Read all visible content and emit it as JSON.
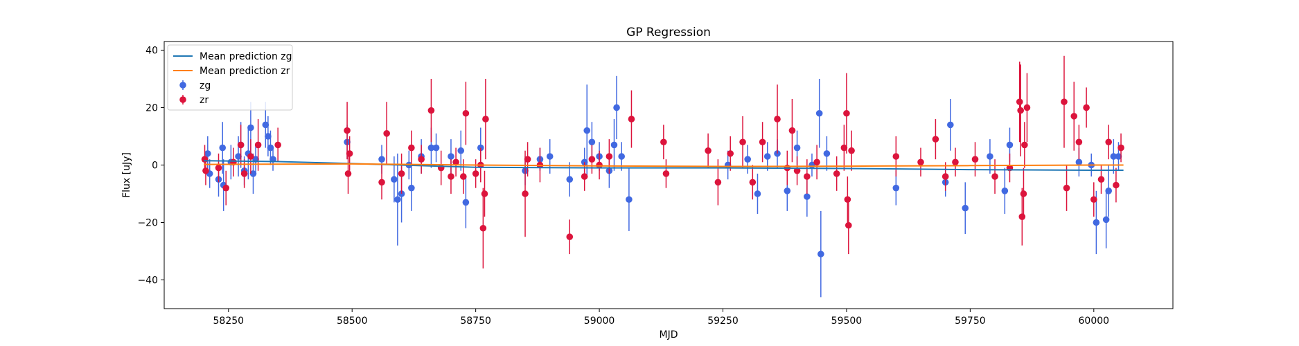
{
  "chart_data": {
    "type": "scatter",
    "title": "GP Regression",
    "xlabel": "MJD",
    "ylabel": "Flux [uJy]",
    "xlim": [
      58120,
      60160
    ],
    "ylim": [
      -50,
      43
    ],
    "xticks": [
      58250,
      58500,
      58750,
      59000,
      59250,
      59500,
      59750,
      60000
    ],
    "yticks": [
      -40,
      -20,
      0,
      20,
      40
    ],
    "grid": false,
    "legend_position": "top-left",
    "legend": [
      "Mean prediction zg",
      "Mean prediction zr",
      "zg",
      "zr"
    ],
    "colors": {
      "zg_line": "#1f77b4",
      "zr_line": "#ff7f0e",
      "zg_points": "#4169e1",
      "zr_points": "#dc143c"
    },
    "series": [
      {
        "name": "Mean prediction zg",
        "kind": "line",
        "x": [
          58200,
          58350,
          58500,
          58750,
          59000,
          59250,
          59500,
          59750,
          60000,
          60060
        ],
        "y": [
          1.5,
          1.2,
          0.5,
          -0.8,
          -1.0,
          -1.0,
          -1.2,
          -1.6,
          -1.8,
          -1.8
        ]
      },
      {
        "name": "Mean prediction zr",
        "kind": "line",
        "x": [
          58200,
          58350,
          58500,
          58750,
          59000,
          59250,
          59500,
          59750,
          60000,
          60060
        ],
        "y": [
          0.2,
          0.3,
          0.4,
          0.0,
          -0.3,
          -0.5,
          -0.4,
          -0.2,
          0.0,
          0.0
        ]
      },
      {
        "name": "zg",
        "kind": "errorbar",
        "points": [
          [
            58208,
            4,
            6
          ],
          [
            58212,
            -3,
            5
          ],
          [
            58230,
            -5,
            6
          ],
          [
            58238,
            6,
            9
          ],
          [
            58240,
            -7,
            9
          ],
          [
            58255,
            1,
            6
          ],
          [
            58270,
            3,
            7
          ],
          [
            58275,
            7,
            8
          ],
          [
            58282,
            -2,
            5
          ],
          [
            58290,
            4,
            9
          ],
          [
            58295,
            13,
            9
          ],
          [
            58300,
            -3,
            7
          ],
          [
            58305,
            2,
            5
          ],
          [
            58325,
            14,
            8
          ],
          [
            58330,
            10,
            7
          ],
          [
            58335,
            6,
            6
          ],
          [
            58340,
            2,
            4
          ],
          [
            58490,
            8,
            6
          ],
          [
            58560,
            2,
            5
          ],
          [
            58585,
            -5,
            8
          ],
          [
            58592,
            -12,
            16
          ],
          [
            58600,
            -10,
            10
          ],
          [
            58615,
            0,
            5
          ],
          [
            58620,
            -8,
            8
          ],
          [
            58640,
            3,
            6
          ],
          [
            58660,
            6,
            7
          ],
          [
            58670,
            6,
            5
          ],
          [
            58700,
            3,
            6
          ],
          [
            58720,
            5,
            7
          ],
          [
            58730,
            -13,
            9
          ],
          [
            58760,
            6,
            7
          ],
          [
            58850,
            -2,
            5
          ],
          [
            58880,
            2,
            4
          ],
          [
            58900,
            3,
            6
          ],
          [
            58940,
            -5,
            6
          ],
          [
            58970,
            1,
            5
          ],
          [
            58975,
            12,
            16
          ],
          [
            58985,
            8,
            7
          ],
          [
            59000,
            3,
            5
          ],
          [
            59020,
            -2,
            6
          ],
          [
            59030,
            7,
            9
          ],
          [
            59035,
            20,
            11
          ],
          [
            59045,
            3,
            5
          ],
          [
            59060,
            -12,
            11
          ],
          [
            59260,
            0,
            5
          ],
          [
            59300,
            2,
            5
          ],
          [
            59320,
            -10,
            7
          ],
          [
            59340,
            3,
            5
          ],
          [
            59360,
            4,
            5
          ],
          [
            59380,
            -9,
            7
          ],
          [
            59400,
            6,
            6
          ],
          [
            59420,
            -11,
            7
          ],
          [
            59430,
            0,
            4
          ],
          [
            59445,
            18,
            12
          ],
          [
            59448,
            -31,
            15
          ],
          [
            59460,
            4,
            6
          ],
          [
            59600,
            -8,
            6
          ],
          [
            59700,
            -6,
            5
          ],
          [
            59710,
            14,
            9
          ],
          [
            59740,
            -15,
            9
          ],
          [
            59790,
            3,
            6
          ],
          [
            59820,
            -9,
            8
          ],
          [
            59830,
            7,
            6
          ],
          [
            59970,
            1,
            5
          ],
          [
            59995,
            0,
            4
          ],
          [
            60005,
            -20,
            11
          ],
          [
            60025,
            -19,
            10
          ],
          [
            60030,
            -9,
            9
          ],
          [
            60040,
            3,
            6
          ],
          [
            60050,
            3,
            5
          ]
        ]
      },
      {
        "name": "zr",
        "kind": "errorbar",
        "points": [
          [
            58202,
            2,
            5
          ],
          [
            58204,
            -2,
            5
          ],
          [
            58230,
            -1,
            5
          ],
          [
            58245,
            -8,
            6
          ],
          [
            58260,
            1,
            5
          ],
          [
            58275,
            7,
            7
          ],
          [
            58282,
            -3,
            5
          ],
          [
            58295,
            3,
            6
          ],
          [
            58310,
            7,
            9
          ],
          [
            58350,
            7,
            6
          ],
          [
            58490,
            12,
            10
          ],
          [
            58492,
            -3,
            7
          ],
          [
            58495,
            4,
            6
          ],
          [
            58560,
            -6,
            6
          ],
          [
            58570,
            11,
            11
          ],
          [
            58600,
            -3,
            7
          ],
          [
            58620,
            6,
            6
          ],
          [
            58640,
            2,
            5
          ],
          [
            58660,
            19,
            11
          ],
          [
            58680,
            -1,
            6
          ],
          [
            58700,
            -4,
            6
          ],
          [
            58710,
            1,
            5
          ],
          [
            58725,
            -4,
            6
          ],
          [
            58730,
            18,
            11
          ],
          [
            58750,
            -3,
            5
          ],
          [
            58760,
            0,
            6
          ],
          [
            58765,
            -22,
            14
          ],
          [
            58768,
            -10,
            8
          ],
          [
            58770,
            16,
            14
          ],
          [
            58850,
            -10,
            15
          ],
          [
            58855,
            2,
            6
          ],
          [
            58880,
            0,
            6
          ],
          [
            58940,
            -25,
            6
          ],
          [
            58970,
            -4,
            5
          ],
          [
            58985,
            2,
            5
          ],
          [
            59000,
            0,
            5
          ],
          [
            59020,
            3,
            6
          ],
          [
            59065,
            16,
            10
          ],
          [
            59130,
            8,
            6
          ],
          [
            59135,
            -3,
            5
          ],
          [
            59220,
            5,
            6
          ],
          [
            59240,
            -6,
            8
          ],
          [
            59265,
            4,
            6
          ],
          [
            59290,
            8,
            9
          ],
          [
            59310,
            -6,
            6
          ],
          [
            59330,
            8,
            7
          ],
          [
            59360,
            16,
            12
          ],
          [
            59380,
            -1,
            6
          ],
          [
            59390,
            12,
            11
          ],
          [
            59400,
            -2,
            5
          ],
          [
            59420,
            -4,
            6
          ],
          [
            59440,
            1,
            6
          ],
          [
            59480,
            -3,
            6
          ],
          [
            59495,
            6,
            8
          ],
          [
            59500,
            18,
            14
          ],
          [
            59502,
            -12,
            8
          ],
          [
            59504,
            -21,
            10
          ],
          [
            59510,
            5,
            7
          ],
          [
            59600,
            3,
            7
          ],
          [
            59650,
            1,
            5
          ],
          [
            59680,
            9,
            7
          ],
          [
            59700,
            -4,
            5
          ],
          [
            59720,
            1,
            5
          ],
          [
            59760,
            2,
            6
          ],
          [
            59800,
            -4,
            6
          ],
          [
            59830,
            -1,
            5
          ],
          [
            59850,
            22,
            14
          ],
          [
            59852,
            19,
            16
          ],
          [
            59855,
            -18,
            10
          ],
          [
            59858,
            -10,
            9
          ],
          [
            59860,
            7,
            8
          ],
          [
            59865,
            20,
            12
          ],
          [
            59940,
            22,
            16
          ],
          [
            59945,
            -8,
            8
          ],
          [
            59960,
            17,
            12
          ],
          [
            59970,
            8,
            6
          ],
          [
            59985,
            20,
            7
          ],
          [
            60000,
            -12,
            6
          ],
          [
            60015,
            -5,
            5
          ],
          [
            60030,
            8,
            6
          ],
          [
            60045,
            -7,
            6
          ],
          [
            60055,
            6,
            5
          ]
        ]
      }
    ]
  }
}
